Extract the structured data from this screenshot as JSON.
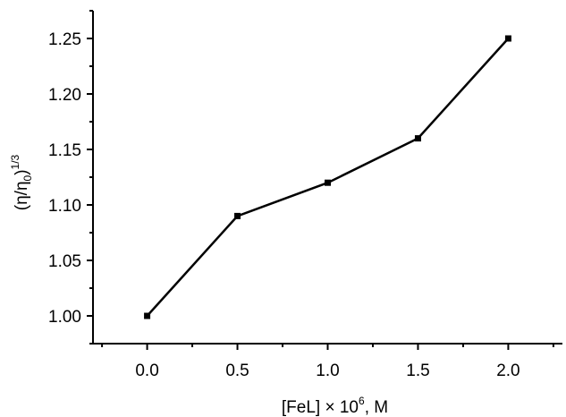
{
  "chart_data": {
    "type": "line",
    "title": "",
    "xlabel": {
      "prefix": "[FeL] × 10",
      "sup": "6",
      "suffix": ", M"
    },
    "ylabel": {
      "open": "(η/η",
      "sub": "0",
      "close": ")",
      "sup": "1/3"
    },
    "xlim": [
      -0.3,
      2.3
    ],
    "ylim": [
      0.975,
      1.275
    ],
    "x_ticks": [
      0.0,
      0.5,
      1.0,
      1.5,
      2.0
    ],
    "x_tick_labels": [
      "0.0",
      "0.5",
      "1.0",
      "1.5",
      "2.0"
    ],
    "y_ticks": [
      1.0,
      1.05,
      1.1,
      1.15,
      1.2,
      1.25
    ],
    "y_tick_labels": [
      "1.00",
      "1.05",
      "1.10",
      "1.15",
      "1.20",
      "1.25"
    ],
    "grid": false,
    "series": [
      {
        "x": [
          0.0,
          0.5,
          1.0,
          1.5,
          2.0
        ],
        "y": [
          1.0,
          1.09,
          1.12,
          1.16,
          1.25
        ],
        "color": "#000000",
        "marker": "square"
      }
    ]
  }
}
